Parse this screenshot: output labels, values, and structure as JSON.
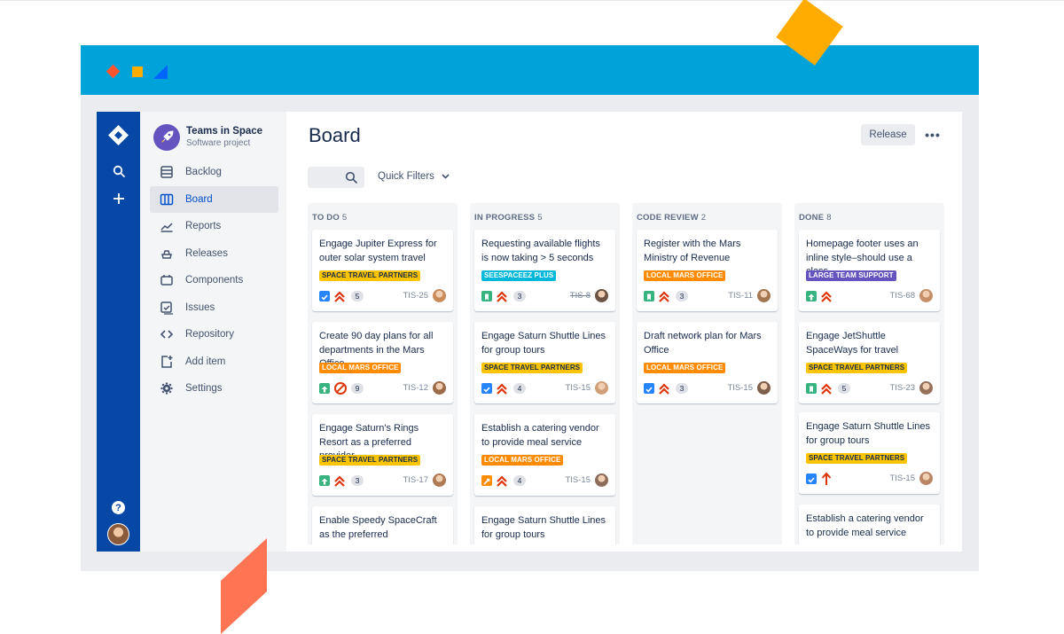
{
  "colors": {
    "accent": "#0052cc",
    "nav": "#0747a6",
    "frame_header": "#00a3d9"
  },
  "project": {
    "name": "Teams in Space",
    "type": "Software project",
    "icon": "rocket-icon"
  },
  "sidebar": {
    "items": [
      {
        "label": "Backlog",
        "icon": "backlog-icon"
      },
      {
        "label": "Board",
        "icon": "board-icon",
        "active": true
      },
      {
        "label": "Reports",
        "icon": "reports-icon"
      },
      {
        "label": "Releases",
        "icon": "releases-icon"
      },
      {
        "label": "Components",
        "icon": "components-icon"
      },
      {
        "label": "Issues",
        "icon": "issues-icon"
      },
      {
        "label": "Repository",
        "icon": "repository-icon"
      },
      {
        "label": "Add item",
        "icon": "add-item-icon"
      },
      {
        "label": "Settings",
        "icon": "gear-icon"
      }
    ]
  },
  "globalnav": {
    "help": "?"
  },
  "header": {
    "title": "Board",
    "release_label": "Release",
    "more_label": "•••"
  },
  "filters": {
    "quick_filters_label": "Quick Filters"
  },
  "columns": [
    {
      "title": "TO DO",
      "count": "5",
      "cards": [
        {
          "title": "Engage Jupiter Express for outer solar system travel",
          "label": "SPACE TRAVEL PARTNERS",
          "label_type": "travel",
          "type": "task",
          "priority": "highest",
          "points": "5",
          "key": "TIS-25"
        },
        {
          "title": "Create 90 day plans for all departments in the Mars Office",
          "label": "LOCAL MARS OFFICE",
          "label_type": "mars",
          "type": "improvement",
          "priority": "blocker",
          "points": "9",
          "key": "TIS-12"
        },
        {
          "title": "Engage Saturn's Rings Resort as a preferred provider",
          "label": "SPACE TRAVEL PARTNERS",
          "label_type": "travel",
          "type": "improvement",
          "priority": "highest",
          "points": "3",
          "key": "TIS-17"
        },
        {
          "title": "Enable Speedy SpaceCraft as the preferred",
          "label": "",
          "label_type": "seespace",
          "type": "",
          "priority": "",
          "points": "",
          "key": ""
        }
      ]
    },
    {
      "title": "IN PROGRESS",
      "count": "5",
      "cards": [
        {
          "title": "Requesting available flights is now taking > 5 seconds",
          "label": "SEESPACEEZ PLUS",
          "label_type": "seespace",
          "type": "story",
          "priority": "highest",
          "points": "3",
          "key": "TIS-8",
          "key_done": true
        },
        {
          "title": "Engage Saturn Shuttle Lines for group tours",
          "label": "SPACE TRAVEL PARTNERS",
          "label_type": "travel",
          "type": "task",
          "priority": "highest",
          "points": "4",
          "key": "TIS-15"
        },
        {
          "title": "Establish a catering vendor to provide meal service",
          "label": "LOCAL MARS OFFICE",
          "label_type": "mars",
          "type": "bug",
          "priority": "highest",
          "points": "4",
          "key": "TIS-15"
        },
        {
          "title": "Engage Saturn Shuttle Lines for group tours",
          "label": "",
          "label_type": "travel",
          "type": "",
          "priority": "",
          "points": "",
          "key": ""
        }
      ]
    },
    {
      "title": "CODE REVIEW",
      "count": "2",
      "cards": [
        {
          "title": "Register with the Mars Ministry of Revenue",
          "label": "LOCAL MARS OFFICE",
          "label_type": "mars",
          "type": "story",
          "priority": "highest",
          "points": "3",
          "key": "TIS-11"
        },
        {
          "title": "Draft network plan for Mars Office",
          "label": "LOCAL MARS OFFICE",
          "label_type": "mars",
          "type": "task",
          "priority": "highest",
          "points": "3",
          "key": "TIS-15"
        }
      ]
    },
    {
      "title": "DONE",
      "count": "8",
      "cards": [
        {
          "title": "Homepage footer uses an inline style–should use a class",
          "label": "LARGE TEAM SUPPORT",
          "label_type": "large",
          "type": "improvement",
          "priority": "highest",
          "points": "",
          "key": "TIS-68"
        },
        {
          "title": "Engage JetShuttle SpaceWays for travel",
          "label": "SPACE TRAVEL PARTNERS",
          "label_type": "travel",
          "type": "story",
          "priority": "highest",
          "points": "5",
          "key": "TIS-23"
        },
        {
          "title": "Engage Saturn Shuttle Lines for group tours",
          "label": "SPACE TRAVEL PARTNERS",
          "label_type": "travel",
          "type": "task",
          "priority": "critical",
          "points": "",
          "key": "TIS-15"
        },
        {
          "title": "Establish a catering vendor to provide meal service",
          "label": "",
          "label_type": "mars",
          "type": "",
          "priority": "",
          "points": "",
          "key": ""
        }
      ]
    }
  ]
}
